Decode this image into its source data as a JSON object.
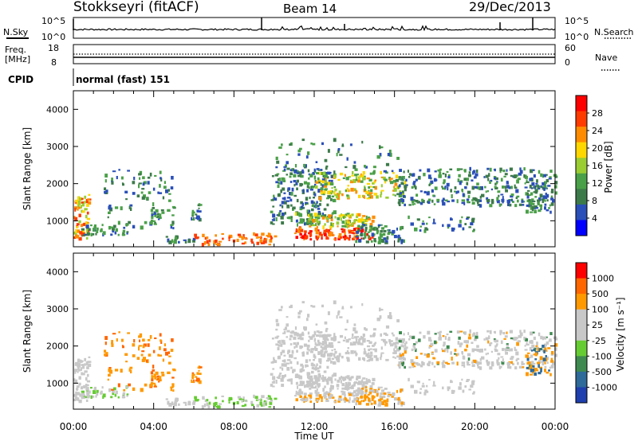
{
  "header": {
    "station": "Stokkseyri (fitACF)",
    "beam": "Beam 14",
    "date": "29/Dec/2013"
  },
  "noise_panel": {
    "left_label": "N.Sky",
    "left_ticks": [
      "10^5",
      "10^0"
    ],
    "right_label": "N.Search",
    "right_ticks": [
      "10^5",
      "10^0"
    ]
  },
  "freq_panel": {
    "left_label_1": "Freq.",
    "left_label_2": "[MHz]",
    "left_ticks": [
      "18",
      "8"
    ],
    "right_label": "Nave",
    "right_ticks": [
      "60",
      "0"
    ]
  },
  "cpid_panel": {
    "label": "CPID",
    "value": "normal (fast) 151"
  },
  "colors": {
    "power_scale": [
      "#0000ff",
      "#2a4fb8",
      "#3d7a4a",
      "#4aa048",
      "#9acd32",
      "#ffd700",
      "#ff8c00",
      "#ff3b00",
      "#ff0000"
    ],
    "velocity_scale": [
      "#1f3fae",
      "#2e6a9a",
      "#3f8a50",
      "#66cc33",
      "#c8c8c8",
      "#c8c8c8",
      "#ff9900",
      "#ff6600",
      "#ff0000"
    ]
  },
  "chart_data": [
    {
      "type": "heatmap",
      "name": "power",
      "ylabel": "Slant Range [km]",
      "yticks": [
        "1000",
        "2000",
        "3000",
        "4000"
      ],
      "ylim": [
        300,
        4500
      ],
      "colorbar_label": "Power [dB]",
      "colorbar_ticks": [
        "28",
        "24",
        "20",
        "16",
        "12",
        "8",
        "4"
      ],
      "colorbar_range": [
        0,
        32
      ],
      "xlim": [
        0,
        24
      ]
    },
    {
      "type": "heatmap",
      "name": "velocity",
      "ylabel": "Slant Range [km]",
      "yticks": [
        "1000",
        "2000",
        "3000",
        "4000"
      ],
      "ylim": [
        300,
        4500
      ],
      "colorbar_label": "Velocity [m s⁻¹]",
      "colorbar_ticks": [
        "1000",
        "500",
        "100",
        "25",
        "-25",
        "-100",
        "-500",
        "-1000"
      ],
      "xlim": [
        0,
        24
      ],
      "xlabel": "Time UT",
      "xticks": [
        "00:00",
        "04:00",
        "08:00",
        "12:00",
        "16:00",
        "20:00",
        "00:00"
      ]
    }
  ]
}
